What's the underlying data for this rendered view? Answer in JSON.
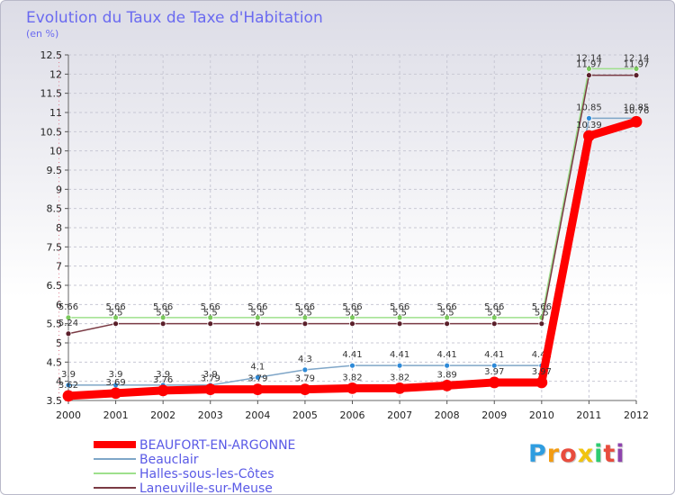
{
  "chart_data": {
    "type": "line",
    "title": "Evolution du Taux de Taxe d'Habitation",
    "subtitle": "(en %)",
    "xlabel": "",
    "ylabel": "",
    "ylim": [
      3.5,
      12.5
    ],
    "y_ticks": [
      "3.5",
      "4",
      "4.5",
      "5",
      "5.5",
      "6",
      "6.5",
      "7",
      "7.5",
      "8",
      "8.5",
      "9",
      "9.5",
      "10",
      "10.5",
      "11",
      "11.5",
      "12",
      "12.5"
    ],
    "categories": [
      "2000",
      "2001",
      "2002",
      "2003",
      "2004",
      "2005",
      "2006",
      "2007",
      "2008",
      "2009",
      "2010",
      "2011",
      "2012"
    ],
    "legend_position": "bottom-left",
    "series": [
      {
        "name": "Beauclair",
        "color": "#7fa6c8",
        "marker_color": "#2e8ad8",
        "values": [
          3.9,
          3.9,
          3.9,
          3.9,
          4.1,
          4.3,
          4.41,
          4.41,
          4.41,
          4.41,
          4.41,
          10.85,
          10.85
        ],
        "labels": [
          "3.9",
          "3.9",
          "3.9",
          "3.9",
          "4.1",
          "4.3",
          "4.41",
          "4.41",
          "4.41",
          "4.41",
          "4.41",
          "10.85",
          "10.85"
        ]
      },
      {
        "name": "Halles-sous-les-Côtes",
        "color": "#9ee08c",
        "marker_color": "#7ac95c",
        "values": [
          5.66,
          5.66,
          5.66,
          5.66,
          5.66,
          5.66,
          5.66,
          5.66,
          5.66,
          5.66,
          5.66,
          12.14,
          12.14
        ],
        "labels": [
          "5.66",
          "5.66",
          "5.66",
          "5.66",
          "5.66",
          "5.66",
          "5.66",
          "5.66",
          "5.66",
          "5.66",
          "5.66",
          "12.14",
          "12.14"
        ]
      },
      {
        "name": "Laneuville-sur-Meuse",
        "color": "#7a3a44",
        "marker_color": "#5a1f2a",
        "values": [
          5.24,
          5.5,
          5.5,
          5.5,
          5.5,
          5.5,
          5.5,
          5.5,
          5.5,
          5.5,
          5.5,
          11.97,
          11.97
        ],
        "labels": [
          "5.24",
          "5.5",
          "5.5",
          "5.5",
          "5.5",
          "5.5",
          "5.5",
          "5.5",
          "5.5",
          "5.5",
          "5.5",
          "11.97",
          "11.97"
        ]
      },
      {
        "name": "BEAUFORT-EN-ARGONNE",
        "color": "#ff0000",
        "marker_color": "#ff0000",
        "thick": true,
        "values": [
          3.62,
          3.69,
          3.76,
          3.79,
          3.79,
          3.79,
          3.82,
          3.82,
          3.89,
          3.97,
          3.97,
          10.39,
          10.76
        ],
        "labels": [
          "3.62",
          "3.69",
          "3.76",
          "3.79",
          "3.79",
          "3.79",
          "3.82",
          "3.82",
          "3.89",
          "3.97",
          "3.97",
          "10.39",
          "10.76"
        ]
      }
    ],
    "legend_order": [
      "BEAUFORT-EN-ARGONNE",
      "Beauclair",
      "Halles-sous-les-Côtes",
      "Laneuville-sur-Meuse"
    ]
  },
  "brand": {
    "letters": [
      "P",
      "r",
      "o",
      "x",
      "i",
      "t",
      "i"
    ],
    "colors": [
      "#2f9de0",
      "#f39c12",
      "#e84c3d",
      "#f1c40f",
      "#2ecc71",
      "#e84c3d",
      "#8e44ad"
    ]
  }
}
